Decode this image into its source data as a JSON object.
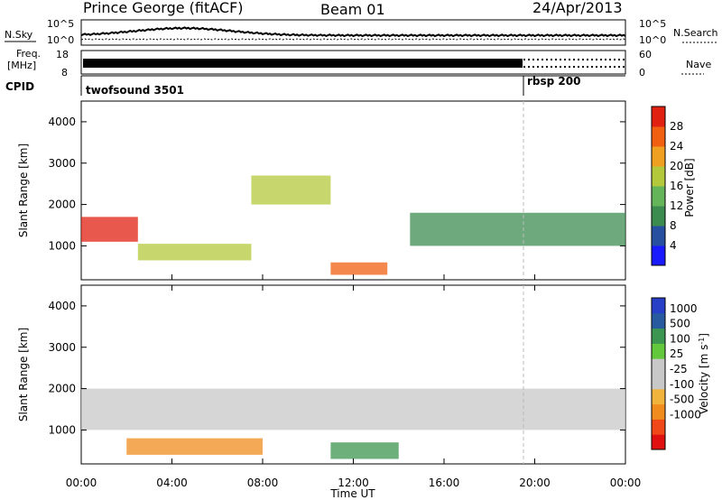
{
  "header": {
    "station": "Prince George (fitACF)",
    "beam": "Beam 01",
    "date": "24/Apr/2013"
  },
  "noise_panel": {
    "left_label": "N.Sky",
    "left_ticks": [
      "10^5",
      "10^0"
    ],
    "right_label": "N.Search",
    "right_ticks": [
      "10^5",
      "10^0"
    ]
  },
  "freq_panel": {
    "left_label_1": "Freq.",
    "left_label_2": "[MHz]",
    "left_ticks": [
      "18",
      "8"
    ],
    "right_label": "Nave",
    "right_ticks": [
      "60",
      "0"
    ]
  },
  "cpid_panel": {
    "label": "CPID",
    "programs": [
      {
        "name": "twofsound 3501",
        "start_hour": 0.0
      },
      {
        "name": "rbsp 200",
        "start_hour": 19.5
      }
    ]
  },
  "colors": {
    "power_scale": [
      "#1a1aff",
      "#2850a0",
      "#3c8c50",
      "#64b45a",
      "#b4c83c",
      "#f0a020",
      "#f06010",
      "#e02010"
    ],
    "velocity_scale": [
      "#e01010",
      "#f04818",
      "#f08c1e",
      "#f0b43c",
      "#c8c8c8",
      "#c8c8c8",
      "#64c83c",
      "#3c9650",
      "#285aa0",
      "#2840c8"
    ]
  },
  "chart_data": [
    {
      "type": "heatmap",
      "name": "power",
      "title": "",
      "xlabel": "Time UT",
      "ylabel": "Slant Range [km]",
      "xlim": [
        0,
        24
      ],
      "ylim": [
        180,
        4500
      ],
      "x_ticks": [
        "00:00",
        "04:00",
        "08:00",
        "12:00",
        "16:00",
        "20:00",
        "00:00"
      ],
      "y_ticks": [
        "1000",
        "2000",
        "3000",
        "4000"
      ],
      "colorbar": {
        "label": "Power [dB]",
        "range": [
          0,
          32
        ],
        "ticks": [
          "4",
          "8",
          "12",
          "16",
          "20",
          "24",
          "28"
        ]
      },
      "bands": [
        {
          "t0": 0.0,
          "t1": 2.5,
          "r0": 1100,
          "r1": 1700,
          "value": 30
        },
        {
          "t0": 2.5,
          "t1": 7.5,
          "r0": 650,
          "r1": 1050,
          "value": 18
        },
        {
          "t0": 7.5,
          "t1": 11.0,
          "r0": 2000,
          "r1": 2700,
          "value": 16
        },
        {
          "t0": 11.0,
          "t1": 13.5,
          "r0": 300,
          "r1": 600,
          "value": 26
        },
        {
          "t0": 14.5,
          "t1": 24.0,
          "r0": 1000,
          "r1": 1800,
          "value": 8
        }
      ]
    },
    {
      "type": "heatmap",
      "name": "velocity",
      "title": "",
      "xlabel": "Time UT",
      "ylabel": "Slant Range [km]",
      "xlim": [
        0,
        24
      ],
      "ylim": [
        180,
        4500
      ],
      "x_ticks": [
        "00:00",
        "04:00",
        "08:00",
        "12:00",
        "16:00",
        "20:00",
        "00:00"
      ],
      "y_ticks": [
        "1000",
        "2000",
        "3000",
        "4000"
      ],
      "colorbar": {
        "label": "Velocity [m s",
        "label_sup": "-1",
        "label_end": "]",
        "ticks": [
          "1000",
          "500",
          "100",
          "25",
          "-25",
          "-100",
          "-500",
          "-1000"
        ]
      },
      "bands": [
        {
          "t0": 2.0,
          "t1": 8.0,
          "r0": 400,
          "r1": 800,
          "value": -300
        },
        {
          "t0": 11.0,
          "t1": 14.0,
          "r0": 300,
          "r1": 700,
          "value": 300
        },
        {
          "t0": 0.0,
          "t1": 24.0,
          "r0": 1000,
          "r1": 2000,
          "value": 0
        }
      ]
    }
  ]
}
